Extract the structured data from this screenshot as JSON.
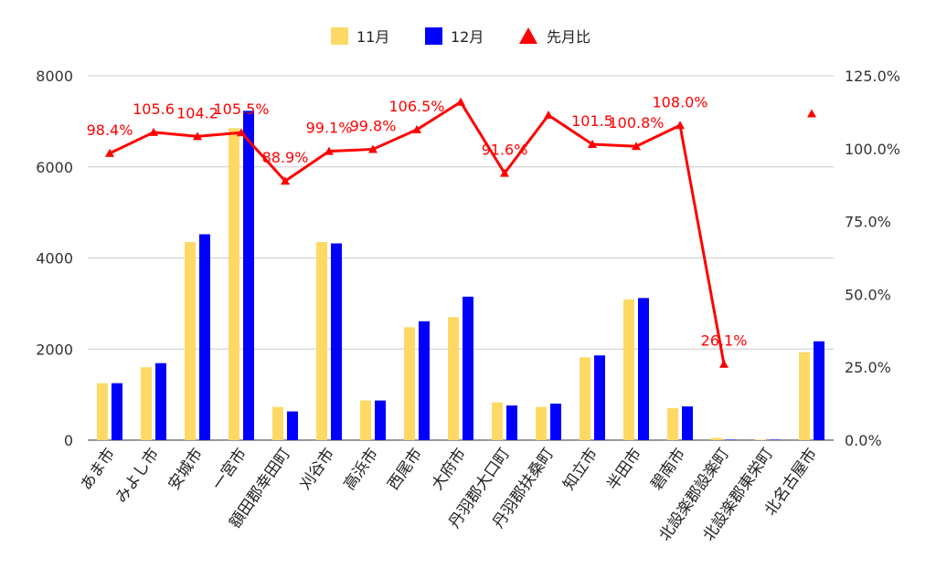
{
  "chart_data": {
    "type": "bar",
    "categories": [
      "あま市",
      "みよし市",
      "安城市",
      "一宮市",
      "額田郡幸田町",
      "刈谷市",
      "高浜市",
      "西尾市",
      "大府市",
      "丹羽郡大口町",
      "丹羽郡扶桑町",
      "知立市",
      "半田市",
      "碧南市",
      "北設楽郡設楽町",
      "北設楽郡東栄町",
      "北名古屋市"
    ],
    "series": [
      {
        "name": "11月",
        "color": "#ffd966",
        "axis": "left",
        "values": [
          1250,
          1600,
          4350,
          6850,
          730,
          4350,
          870,
          2480,
          2700,
          830,
          730,
          1820,
          3090,
          700,
          50,
          0,
          1930
        ]
      },
      {
        "name": "12月",
        "color": "#0000ff",
        "axis": "left",
        "values": [
          1250,
          1690,
          4520,
          7230,
          630,
          4320,
          870,
          2610,
          3150,
          760,
          800,
          1860,
          3120,
          740,
          10,
          5,
          2170
        ]
      }
    ],
    "line_series": {
      "name": "先月比",
      "color": "#ff0000",
      "axis": "right",
      "values": [
        98.4,
        105.6,
        104.2,
        105.5,
        88.9,
        99.1,
        99.8,
        106.5,
        116.0,
        91.6,
        111.5,
        101.5,
        100.8,
        108.0,
        26.1,
        null,
        112.0
      ],
      "labels": [
        "98.4%",
        "105.6",
        "104.2",
        "105.5%",
        "88.9%",
        "99.1%",
        "99.8%",
        "106.5%",
        "",
        "91.6%",
        "",
        "101.5",
        "100.8%",
        "108.0%",
        "26.1%",
        "",
        ""
      ],
      "line_break_before_index": 16
    },
    "y_left": {
      "min": 0,
      "max": 8000,
      "ticks": [
        "0",
        "2000",
        "4000",
        "6000",
        "8000"
      ]
    },
    "y_right": {
      "min": 0,
      "max": 125,
      "ticks": [
        "0.0%",
        "25.0%",
        "50.0%",
        "75.0%",
        "100.0%",
        "125.0%"
      ]
    },
    "grid": true,
    "legend_position": "top"
  }
}
